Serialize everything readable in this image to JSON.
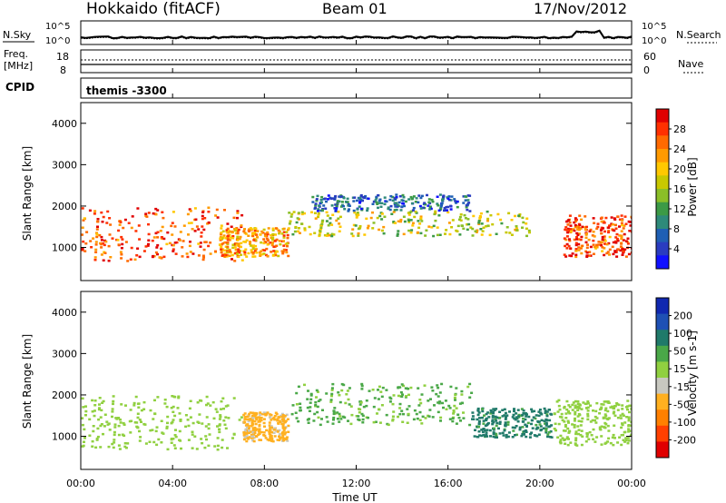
{
  "header": {
    "title": "Hokkaido (fitACF)",
    "beam": "Beam 01",
    "date": "17/Nov/2012"
  },
  "noise_panel": {
    "left_label": "N.Sky",
    "right_label": "N.Search",
    "tick_top": "10^5",
    "tick_bottom": "10^0"
  },
  "freq_panel": {
    "left_label_line1": "Freq.",
    "left_label_line2": "[MHz]",
    "right_label": "Nave",
    "left_tick_top": "18",
    "left_tick_bottom": "8",
    "right_tick_top": "60",
    "right_tick_bottom": "0"
  },
  "cpid_panel": {
    "label": "CPID",
    "value": "themis -3300"
  },
  "x_axis": {
    "label": "Time UT",
    "ticks": [
      "00:00",
      "04:00",
      "08:00",
      "12:00",
      "16:00",
      "20:00",
      "00:00"
    ]
  },
  "y_axis": {
    "label": "Slant Range [km]",
    "ticks": [
      "1000",
      "2000",
      "3000",
      "4000"
    ]
  },
  "power_colorbar": {
    "label": "Power [dB]",
    "ticks": [
      "28",
      "24",
      "20",
      "16",
      "12",
      "8",
      "4"
    ],
    "colors": [
      "#e00000",
      "#ff3000",
      "#ff6a00",
      "#ff9a00",
      "#ffc800",
      "#c8c800",
      "#8bbf28",
      "#3c9a46",
      "#2e8a7a",
      "#1f5fb4",
      "#2a3cc0",
      "#1010ff"
    ]
  },
  "velocity_colorbar": {
    "label": "Velocity [m s-1]",
    "ticks": [
      "200",
      "100",
      "50",
      "15",
      "-15",
      "-50",
      "-100",
      "-200"
    ],
    "colors": [
      "#1028b0",
      "#1e50b4",
      "#207a6a",
      "#4aa848",
      "#90d040",
      "#c8c8c0",
      "#ffb020",
      "#ff8000",
      "#ff4000",
      "#e00000"
    ]
  },
  "chart_data": [
    {
      "type": "heatmap",
      "title": "Hokkaido (fitACF) Beam 01 17/Nov/2012",
      "xlabel": "Time UT",
      "ylabel": "Slant Range [km]",
      "xlim": [
        "00:00",
        "24:00"
      ],
      "ylim": [
        200,
        4500
      ],
      "colorbar": {
        "label": "Power [dB]",
        "range": [
          0,
          30
        ]
      },
      "bands": [
        {
          "t_start": 0.0,
          "t_end": 7.0,
          "range_low": 700,
          "range_high": 2000,
          "power": 26
        },
        {
          "t_start": 6.0,
          "t_end": 9.0,
          "range_low": 800,
          "range_high": 1500,
          "power": 22
        },
        {
          "t_start": 9.0,
          "t_end": 19.5,
          "range_low": 1300,
          "range_high": 1900,
          "power": 16
        },
        {
          "t_start": 10.0,
          "t_end": 17.0,
          "range_low": 1900,
          "range_high": 2300,
          "power": 6
        },
        {
          "t_start": 21.0,
          "t_end": 24.0,
          "range_low": 800,
          "range_high": 1800,
          "power": 26
        }
      ]
    },
    {
      "type": "heatmap",
      "xlabel": "Time UT",
      "ylabel": "Slant Range [km]",
      "xlim": [
        "00:00",
        "24:00"
      ],
      "ylim": [
        200,
        4500
      ],
      "colorbar": {
        "label": "Velocity [m s-1]",
        "range": [
          -200,
          200
        ]
      },
      "bands": [
        {
          "t_start": 0.0,
          "t_end": 7.0,
          "range_low": 700,
          "range_high": 2000,
          "velocity": 0
        },
        {
          "t_start": 7.0,
          "t_end": 9.0,
          "range_low": 900,
          "range_high": 1600,
          "velocity": -60
        },
        {
          "t_start": 9.0,
          "t_end": 17.0,
          "range_low": 1300,
          "range_high": 2300,
          "velocity": 20
        },
        {
          "t_start": 17.0,
          "t_end": 20.5,
          "range_low": 1000,
          "range_high": 1700,
          "velocity": 60
        },
        {
          "t_start": 20.5,
          "t_end": 24.0,
          "range_low": 800,
          "range_high": 1900,
          "velocity": 0
        }
      ]
    }
  ]
}
